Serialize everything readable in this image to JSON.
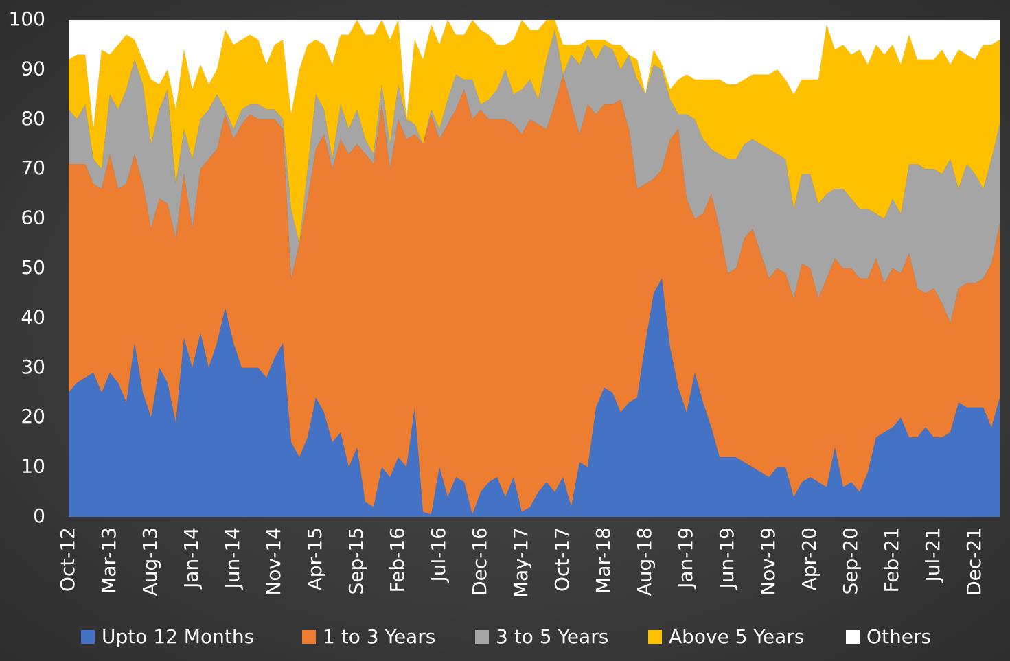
{
  "chart_data": {
    "type": "stacked-area",
    "categories": [
      "Oct-12",
      null,
      null,
      null,
      null,
      "Mar-13",
      null,
      null,
      null,
      null,
      "Aug-13",
      null,
      null,
      null,
      null,
      "Jan-14",
      null,
      null,
      null,
      null,
      "Jun-14",
      null,
      null,
      null,
      null,
      "Nov-14",
      null,
      null,
      null,
      null,
      "Apr-15",
      null,
      null,
      null,
      null,
      "Sep-15",
      null,
      null,
      null,
      null,
      "Feb-16",
      null,
      null,
      null,
      null,
      "Jul-16",
      null,
      null,
      null,
      null,
      "Dec-16",
      null,
      null,
      null,
      null,
      "May-17",
      null,
      null,
      null,
      null,
      "Oct-17",
      null,
      null,
      null,
      null,
      "Mar-18",
      null,
      null,
      null,
      null,
      "Aug-18",
      null,
      null,
      null,
      null,
      "Jan-19",
      null,
      null,
      null,
      null,
      "Jun-19",
      null,
      null,
      null,
      null,
      "Nov-19",
      null,
      null,
      null,
      null,
      "Apr-20",
      null,
      null,
      null,
      null,
      "Sep-20",
      null,
      null,
      null,
      null,
      "Feb-21",
      null,
      null,
      null,
      null,
      "Jul-21",
      null,
      null,
      null,
      null,
      "Dec-21",
      null,
      null,
      null
    ],
    "series": [
      {
        "name": "Upto 12 Months",
        "color": "#4472c4",
        "values": [
          25,
          27,
          28,
          29,
          25,
          29,
          27,
          23,
          35,
          25,
          20,
          30,
          27,
          19,
          36,
          30,
          37,
          30,
          35,
          42,
          35,
          30,
          30,
          30,
          28,
          32,
          35,
          15,
          12,
          16,
          24,
          21,
          15,
          17,
          10,
          14,
          3,
          2,
          10,
          8,
          12,
          10,
          22,
          1,
          0.5,
          10,
          4,
          8,
          7,
          0.5,
          5,
          7,
          8,
          4,
          8,
          1,
          2,
          5,
          7,
          5,
          8,
          2,
          11,
          10,
          22,
          26,
          25,
          21,
          23,
          24,
          35,
          45,
          48,
          34,
          26,
          21,
          29,
          23,
          18,
          12,
          12,
          12,
          11,
          10,
          9,
          8,
          10,
          10,
          4,
          7,
          8,
          7,
          6,
          14,
          6,
          7,
          5,
          9,
          16,
          17,
          18,
          20,
          16,
          16,
          18,
          16,
          16,
          17,
          23,
          22,
          22,
          22,
          18,
          24
        ]
      },
      {
        "name": "1 to 3 Years",
        "color": "#ed7d31",
        "values": [
          46,
          44,
          43,
          38,
          41,
          44,
          39,
          44,
          38,
          42,
          38,
          34,
          36,
          37,
          33,
          28,
          33,
          42,
          39,
          39,
          41,
          49,
          51,
          50,
          52,
          48,
          43,
          33,
          43,
          48,
          50,
          56,
          55,
          59,
          63,
          61,
          70,
          69,
          73,
          62,
          68,
          66,
          55,
          74,
          80.5,
          66,
          75,
          74,
          79,
          79.5,
          77,
          73,
          72,
          76,
          71,
          76,
          78,
          74,
          71,
          78,
          81,
          81,
          66,
          73,
          59,
          57,
          58,
          63,
          55,
          42,
          32,
          23,
          22,
          42,
          52,
          43,
          31,
          38,
          47,
          46,
          37,
          38,
          45,
          48,
          44,
          40,
          40,
          39,
          40,
          44,
          42,
          37,
          42,
          38,
          44,
          43,
          43,
          39,
          36,
          30,
          32,
          29,
          37,
          30,
          27,
          30,
          27,
          22,
          23,
          25,
          25,
          26,
          33,
          35
        ]
      },
      {
        "name": "3 to 5 Years",
        "color": "#a5a5a5",
        "values": [
          11,
          9,
          12,
          5,
          4,
          12,
          16,
          19,
          19,
          20,
          17,
          18,
          23,
          11,
          9,
          14,
          10,
          10,
          11,
          1,
          2,
          3,
          2,
          3,
          2,
          2,
          2,
          14,
          0,
          6,
          11,
          5,
          2,
          7,
          5,
          7,
          3,
          2,
          4,
          5,
          7,
          4,
          2,
          0,
          1,
          2,
          5,
          7,
          2,
          8,
          1,
          4,
          6,
          10,
          6,
          9,
          8,
          5,
          14,
          15,
          0,
          10,
          14,
          12,
          11,
          12,
          11,
          6,
          15,
          22,
          18,
          23,
          20,
          8,
          3,
          17,
          20,
          15,
          9,
          15,
          23,
          22,
          19,
          18,
          22,
          26,
          23,
          23,
          18,
          18,
          19,
          19,
          17,
          14,
          16,
          14,
          14,
          14,
          9,
          13,
          14,
          12,
          18,
          25,
          25,
          24,
          26,
          33,
          20,
          24,
          22,
          18,
          21,
          20
        ]
      },
      {
        "name": "Above 5 Years",
        "color": "#ffc000",
        "values": [
          10,
          13,
          10,
          6,
          24,
          8,
          13,
          11,
          4,
          5,
          13,
          5,
          4,
          15,
          16,
          14,
          11,
          5,
          5,
          16,
          17,
          14,
          14,
          13,
          9,
          13,
          16,
          19,
          35,
          25,
          11,
          13,
          19,
          14,
          19,
          18,
          21,
          24,
          13,
          21,
          13,
          0,
          17,
          17,
          17,
          17,
          16,
          8,
          9,
          12,
          15,
          13,
          9,
          5,
          11,
          14,
          10,
          14,
          8,
          2,
          6,
          2,
          4,
          1,
          4,
          1,
          1,
          5,
          0,
          4,
          0,
          3,
          1,
          2,
          7,
          8,
          8,
          12,
          14,
          15,
          15,
          15,
          13,
          13,
          14,
          15,
          17,
          16,
          23,
          19,
          19,
          25,
          34,
          28,
          29,
          29,
          32,
          29,
          34,
          33,
          31,
          30,
          26,
          21,
          22,
          22,
          25,
          19,
          28,
          22,
          23,
          29,
          23,
          17
        ]
      },
      {
        "name": "Others",
        "color": "#ffffff",
        "values": [
          8,
          7,
          7,
          22,
          6,
          7,
          5,
          3,
          4,
          8,
          12,
          13,
          10,
          18,
          6,
          14,
          9,
          13,
          10,
          2,
          5,
          4,
          3,
          4,
          9,
          5,
          4,
          19,
          10,
          5,
          4,
          5,
          9,
          3,
          3,
          0,
          3,
          3,
          0,
          4,
          0,
          20,
          4,
          8,
          1,
          5,
          0,
          3,
          3,
          0,
          2,
          3,
          5,
          5,
          4,
          0,
          2,
          2,
          0,
          0,
          5,
          5,
          5,
          4,
          4,
          4,
          5,
          5,
          7,
          8,
          15,
          6,
          9,
          14,
          12,
          11,
          12,
          12,
          12,
          12,
          13,
          13,
          12,
          11,
          11,
          11,
          10,
          12,
          15,
          12,
          12,
          12,
          1,
          6,
          5,
          7,
          6,
          9,
          5,
          7,
          5,
          9,
          3,
          8,
          8,
          8,
          6,
          9,
          6,
          7,
          8,
          5,
          5,
          4
        ]
      }
    ],
    "ylim": [
      0,
      100
    ],
    "yticks": [
      0,
      10,
      20,
      30,
      40,
      50,
      60,
      70,
      80,
      90,
      100
    ],
    "grid": false
  }
}
